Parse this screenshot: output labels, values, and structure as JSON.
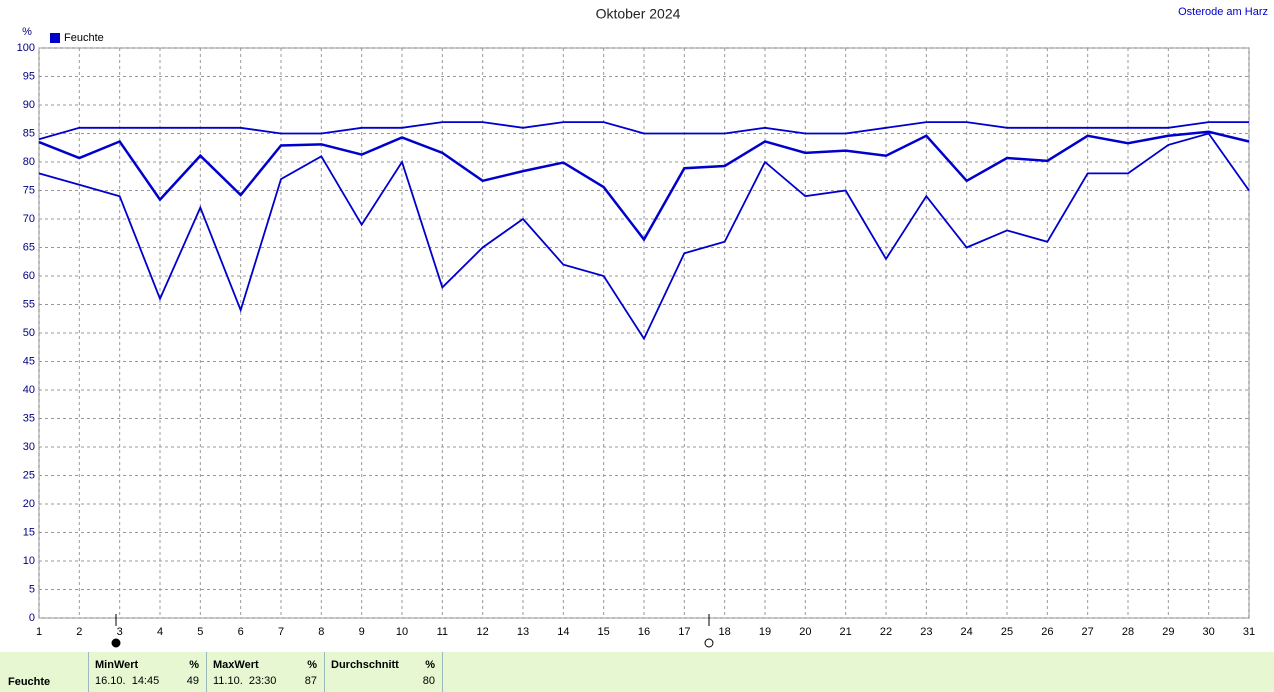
{
  "chart_data": {
    "type": "line",
    "title": "Oktober 2024",
    "location": "Osterode am Harz",
    "y_label": "%",
    "x": [
      1,
      2,
      3,
      4,
      5,
      6,
      7,
      8,
      9,
      10,
      11,
      12,
      13,
      14,
      15,
      16,
      17,
      18,
      19,
      20,
      21,
      22,
      23,
      24,
      25,
      26,
      27,
      28,
      29,
      30,
      31
    ],
    "xlim": [
      1,
      31
    ],
    "ylim": [
      0,
      100
    ],
    "yticks": [
      0,
      5,
      10,
      15,
      20,
      25,
      30,
      35,
      40,
      45,
      50,
      55,
      60,
      65,
      70,
      75,
      80,
      85,
      90,
      95,
      100
    ],
    "grid": true,
    "legend": "top-left",
    "series": [
      {
        "name": "Feuchte",
        "color": "#0000cc",
        "values": [
          84,
          86,
          86,
          86,
          86,
          86,
          85,
          85,
          86,
          86,
          87,
          87,
          86,
          87,
          87,
          85,
          85,
          85,
          86,
          85,
          85,
          86,
          87,
          87,
          86,
          86,
          86,
          86,
          86,
          87,
          87
        ]
      },
      {
        "color": "#0000cc",
        "values": [
          83.5,
          80.7,
          83.6,
          73.4,
          81.1,
          74.2,
          82.9,
          83.1,
          81.3,
          84.3,
          81.6,
          76.7,
          78.4,
          79.9,
          75.6,
          66.4,
          78.9,
          79.3,
          83.6,
          81.6,
          82,
          81.1,
          84.6,
          76.7,
          80.7,
          80.2,
          84.6,
          83.3,
          84.6,
          85.3,
          83.6
        ]
      },
      {
        "color": "#0000cc",
        "values": [
          78,
          76,
          74,
          56,
          72,
          54,
          77,
          81,
          69,
          80,
          58,
          65,
          70,
          62,
          60,
          49,
          64,
          66,
          80,
          74,
          75,
          63,
          74,
          65,
          68,
          66,
          78,
          78,
          83,
          85,
          75
        ]
      }
    ]
  },
  "summary": {
    "row_label": "Feuchte",
    "columns": [
      {
        "title": "MinWert",
        "unit": "%",
        "time": "16.10.  14:45",
        "value": 49
      },
      {
        "title": "MaxWert",
        "unit": "%",
        "time": "11.10.  23:30",
        "value": 87
      },
      {
        "title": "Durchschnitt",
        "unit": "%",
        "value": 80
      }
    ]
  }
}
